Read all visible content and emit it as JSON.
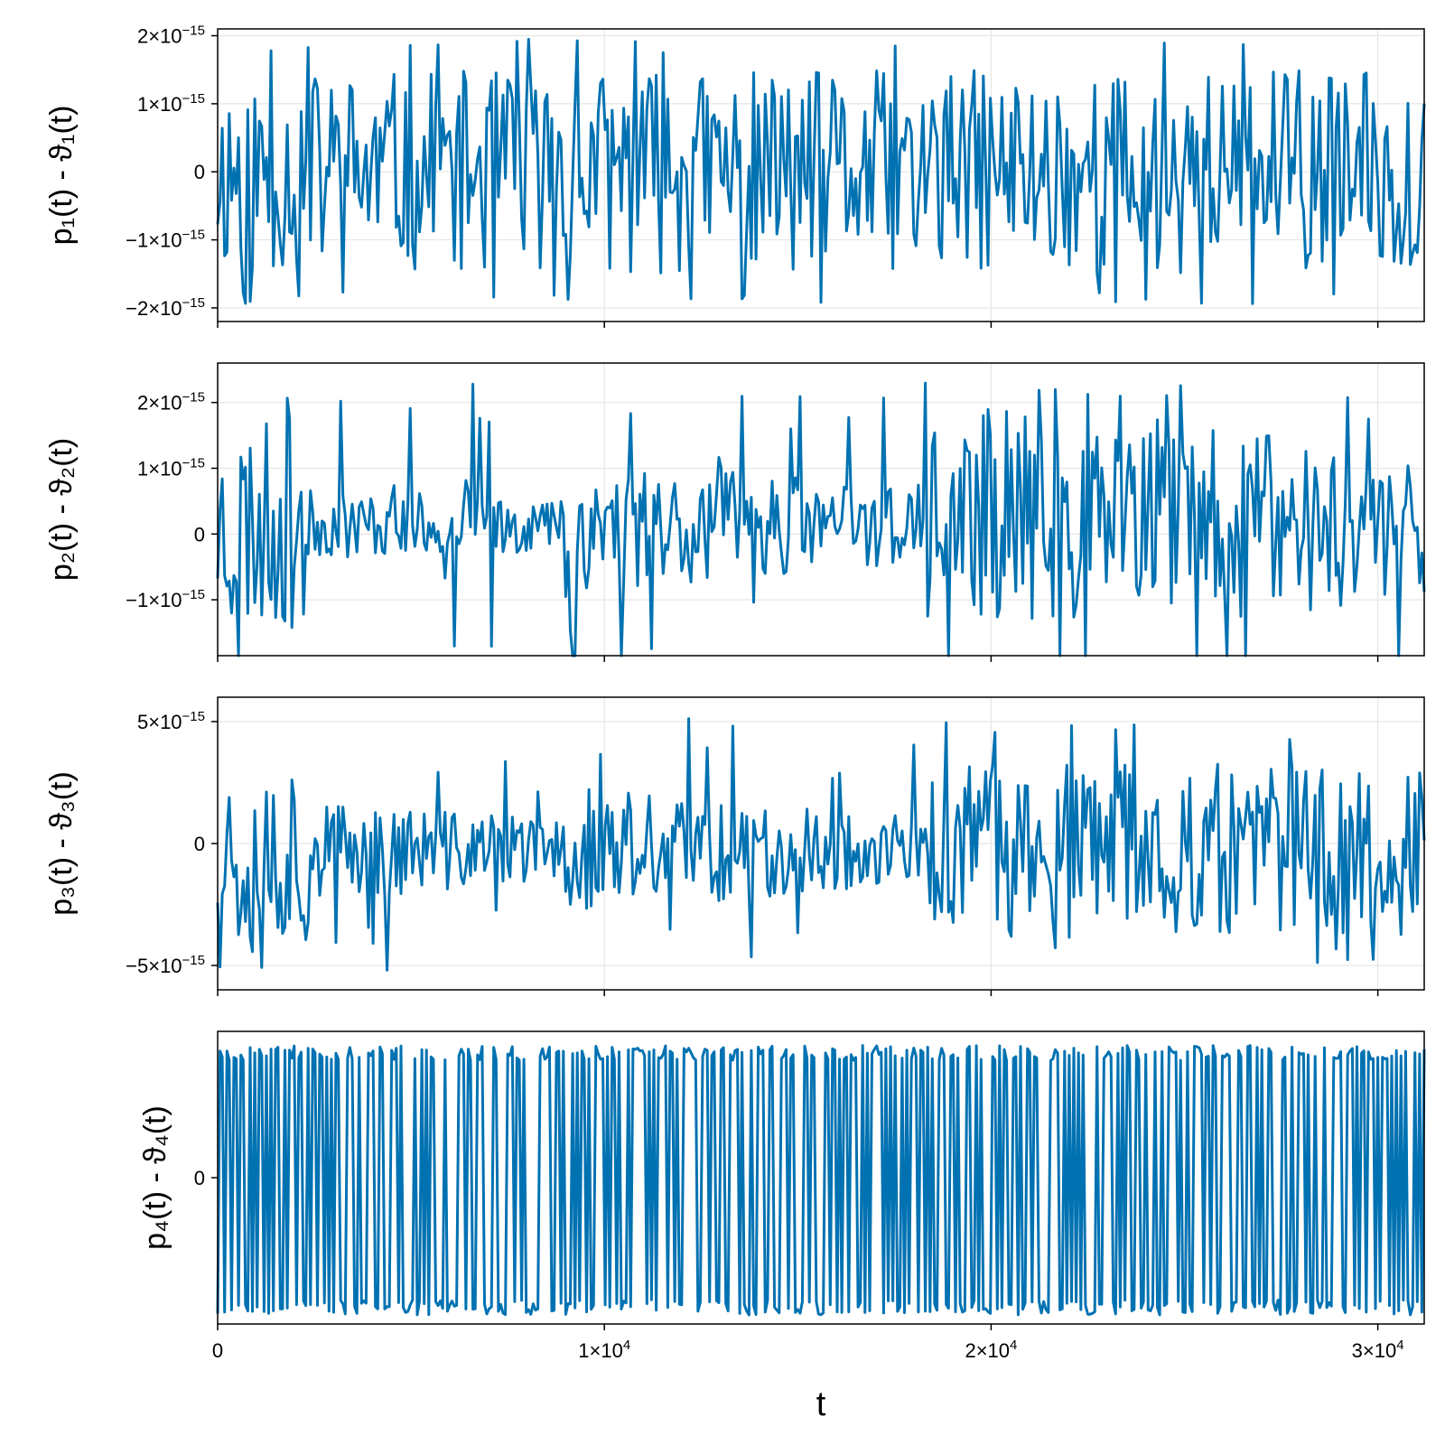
{
  "chart_data": [
    {
      "type": "line",
      "ylabel": "p₁(t) - ϑ₁(t)",
      "xlabel": "",
      "xlim": [
        0,
        31200
      ],
      "ylim": [
        -2.2e-15,
        2.1e-15
      ],
      "grid": true,
      "color": "#0072b2",
      "yticks": [
        {
          "value": 2e-15,
          "mant": "2×10",
          "exp": "−15"
        },
        {
          "value": 1e-15,
          "mant": "1×10",
          "exp": "−15"
        },
        {
          "value": 0,
          "mant": "0",
          "exp": ""
        },
        {
          "value": -1e-15,
          "mant": "−1×10",
          "exp": "−15"
        },
        {
          "value": -2e-15,
          "mant": "−2×10",
          "exp": "−15"
        }
      ],
      "series": [
        {
          "x_step": 60,
          "noise": {
            "seed": 11,
            "segments": [
              [
                0,
                1.75e-15
              ],
              [
                31200,
                1.75e-15
              ]
            ],
            "spike": 1.95e-15
          }
        }
      ]
    },
    {
      "type": "line",
      "ylabel": "p₂(t) - ϑ₂(t)",
      "xlabel": "",
      "xlim": [
        0,
        31200
      ],
      "ylim": [
        -1.85e-15,
        2.6e-15
      ],
      "grid": true,
      "color": "#0072b2",
      "yticks": [
        {
          "value": 2e-15,
          "mant": "2×10",
          "exp": "−15"
        },
        {
          "value": 1e-15,
          "mant": "1×10",
          "exp": "−15"
        },
        {
          "value": 0,
          "mant": "0",
          "exp": ""
        },
        {
          "value": -1e-15,
          "mant": "−1×10",
          "exp": "−15"
        }
      ],
      "series": [
        {
          "x_step": 60,
          "noise": {
            "seed": 23,
            "segments": [
              [
                0,
                1.9e-15
              ],
              [
                2300,
                1.9e-15
              ],
              [
                2400,
                6e-16
              ],
              [
                8900,
                5e-16
              ],
              [
                9000,
                1.3e-15
              ],
              [
                14500,
                9e-16
              ],
              [
                18300,
                7e-16
              ],
              [
                18500,
                1.7e-15
              ],
              [
                31200,
                1.7e-15
              ]
            ],
            "spike": 2.3e-15,
            "bias": 1.5e-16
          }
        }
      ]
    },
    {
      "type": "line",
      "ylabel": "p₃(t) - ϑ₃(t)",
      "xlabel": "",
      "xlim": [
        0,
        31200
      ],
      "ylim": [
        -6e-15,
        6e-15
      ],
      "grid": true,
      "color": "#0072b2",
      "yticks": [
        {
          "value": 5e-15,
          "mant": "5×10",
          "exp": "−15"
        },
        {
          "value": 0,
          "mant": "0",
          "exp": ""
        },
        {
          "value": -5e-15,
          "mant": "−5×10",
          "exp": "−15"
        }
      ],
      "series": [
        {
          "x_step": 60,
          "noise": {
            "seed": 37,
            "segments": [
              [
                0,
                5e-15
              ],
              [
                2300,
                5e-15
              ],
              [
                2400,
                2.5e-15
              ],
              [
                8900,
                1.5e-15
              ],
              [
                9100,
                3.2e-15
              ],
              [
                14500,
                2.2e-15
              ],
              [
                18300,
                1.6e-15
              ],
              [
                18500,
                4.2e-15
              ],
              [
                31200,
                4.2e-15
              ]
            ],
            "spike": 5.2e-15,
            "bias": -3e-16
          }
        }
      ]
    },
    {
      "type": "line",
      "ylabel": "p₄(t) - ϑ₄(t)",
      "xlabel": "t",
      "xlim": [
        0,
        31200
      ],
      "ylim": [
        -1.15,
        1.15
      ],
      "grid": false,
      "color": "#0072b2",
      "xticks": [
        {
          "value": 0,
          "mant": "0",
          "exp": ""
        },
        {
          "value": 10000,
          "mant": "1×10",
          "exp": "4"
        },
        {
          "value": 20000,
          "mant": "2×10",
          "exp": "4"
        },
        {
          "value": 30000,
          "mant": "3×10",
          "exp": "4"
        }
      ],
      "yticks": [
        {
          "value": 0,
          "mant": "0",
          "exp": ""
        }
      ],
      "series": [
        {
          "x_step": 60,
          "square": {
            "seed": 53,
            "levels": [
              0.98,
              -1.02
            ]
          }
        }
      ]
    }
  ]
}
